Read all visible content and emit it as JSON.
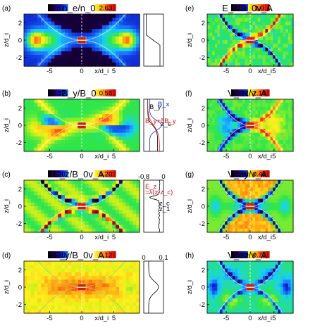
{
  "chart_data": [
    {
      "type": "heatmap",
      "panel": "(a)",
      "title": "n_e/n_0",
      "cbar": {
        "min": "0.07",
        "max": "2.63"
      },
      "xticks": [
        "-5",
        "0",
        "5"
      ],
      "yticks": [
        "2",
        "0",
        "-2"
      ],
      "xlabel": "x/d_i",
      "ylabel": "z/d_i",
      "style": "density",
      "profile": "density"
    },
    {
      "type": "heatmap",
      "panel": "(b)",
      "title": "B_y/B_0",
      "cbar": {
        "min": "-0.22",
        "max": "0.55"
      },
      "xticks": [
        "-5",
        "0",
        "5"
      ],
      "yticks": [
        "2",
        "0",
        "-2"
      ],
      "xlabel": "x/d_i",
      "ylabel": "z/d_i",
      "style": "guide",
      "profile": "by",
      "cut_labels": [
        "B_y",
        "B_x",
        "B_y+δB_y",
        "z_c"
      ]
    },
    {
      "type": "heatmap",
      "panel": "(c)",
      "title": "E_z/B_0v_A",
      "cbar": {
        "min": "-1.20",
        "max": "1.20"
      },
      "xticks": [
        "-5",
        "0",
        "5"
      ],
      "yticks": [
        "2",
        "0",
        "-2"
      ],
      "xlabel": "x/d_i",
      "ylabel": "z/d_i",
      "style": "ez",
      "profile": "ez",
      "profile_top": [
        "-0.8",
        "0"
      ],
      "cut_labels": [
        "E_z",
        "=λ(z-z_c)",
        "z_c",
        "z_1"
      ]
    },
    {
      "type": "heatmap",
      "panel": "(d)",
      "title": "E_y/B_0v_A",
      "cbar": {
        "min": "-0.20",
        "max": "0.12"
      },
      "xticks": [
        "-5",
        "0",
        "5"
      ],
      "yticks": [
        "2",
        "0",
        "-2"
      ],
      "xlabel": "x/d_i",
      "ylabel": "z/d_i",
      "style": "ey",
      "profile": "ey",
      "profile_top": [
        "0",
        "0.1"
      ]
    },
    {
      "type": "heatmap",
      "panel": "(e)",
      "title": "E_x/B_0v_A",
      "cbar": {
        "min": "-1.0",
        "max": "1.0"
      },
      "xticks": [
        "-5",
        "0",
        "5"
      ],
      "yticks": [
        "2",
        "0",
        "-2"
      ],
      "xlabel": "x/d_i",
      "ylabel": "z/d_i",
      "style": "ex"
    },
    {
      "type": "heatmap",
      "panel": "(f)",
      "title": "V_ex/v_A",
      "cbar": {
        "min": "-2.31",
        "max": "2.14"
      },
      "xticks": [
        "-5",
        "0",
        "5"
      ],
      "yticks": [
        "2",
        "0",
        "-2"
      ],
      "xlabel": "x/d_i",
      "ylabel": "z/d_i",
      "style": "vex"
    },
    {
      "type": "heatmap",
      "panel": "(g)",
      "title": "V_ey/v_A",
      "cbar": {
        "min": "-2.99",
        "max": "0.48"
      },
      "xticks": [
        "-5",
        "0",
        "5"
      ],
      "yticks": [
        "2",
        "0",
        "-2"
      ],
      "xlabel": "x/d_i",
      "ylabel": "z/d_i",
      "style": "vey"
    },
    {
      "type": "heatmap",
      "panel": "(h)",
      "title": "V_ez/v_A",
      "cbar": {
        "min": "-0.39",
        "max": "0.79"
      },
      "xticks": [
        "-5",
        "0",
        "5"
      ],
      "yticks": [
        "2",
        "0",
        "-2"
      ],
      "xlabel": "x/d_i",
      "ylabel": "z/d_i",
      "style": "vez"
    }
  ],
  "colors": {
    "colormap": [
      "#000000",
      "#2a006e",
      "#0a1ccc",
      "#1f7bff",
      "#17d4f0",
      "#2fe64a",
      "#c8ef1a",
      "#fff11e",
      "#ffa514",
      "#ff2a0a",
      "#a30000"
    ],
    "cut_line": "#ffffff",
    "marker": "#cc2200",
    "by_line": "#7a2fd0",
    "bx_line": "#1130d8",
    "pert_line": "#e01010"
  }
}
